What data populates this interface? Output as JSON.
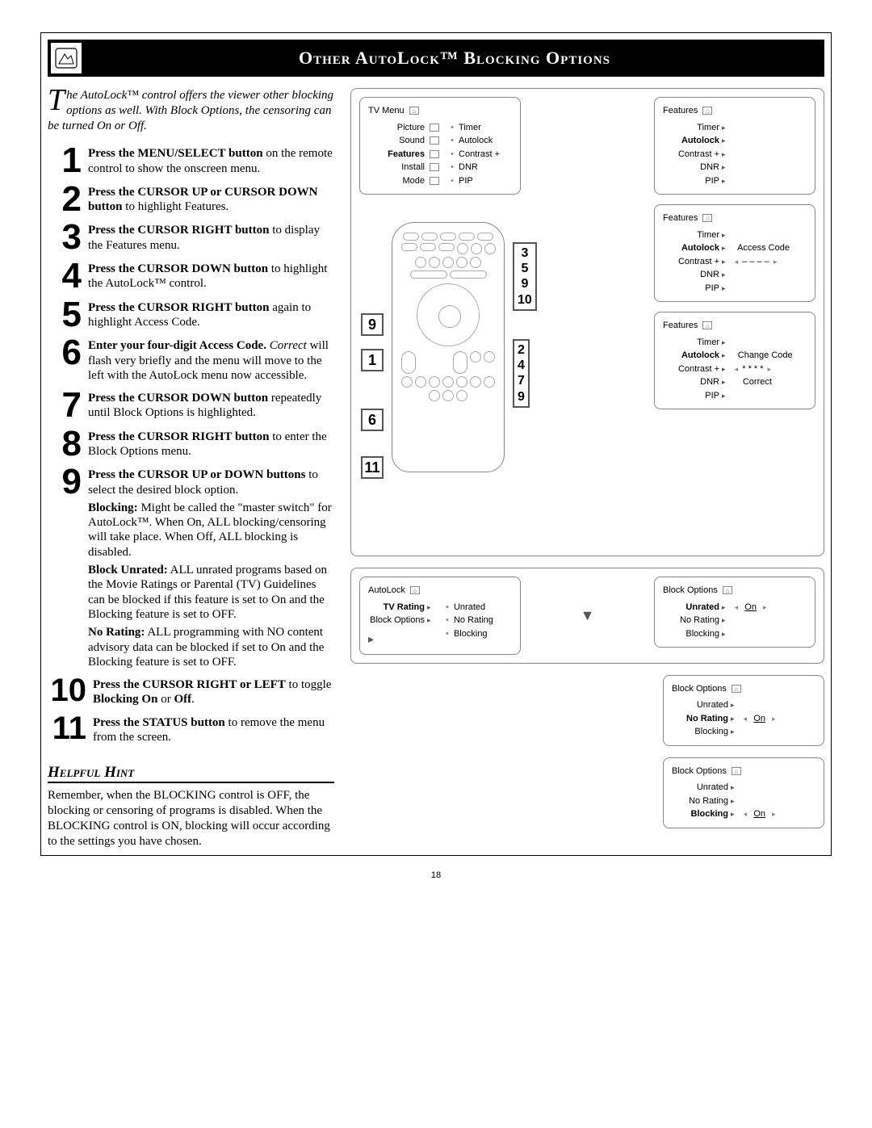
{
  "title": "Other AutoLock™ Blocking Options",
  "intro_drop": "T",
  "intro_rest": "he AutoLock™ control offers the viewer other blocking options as well. With Block Options, the censoring can be turned On or Off.",
  "steps": [
    {
      "n": "1",
      "body": "<b>Press the MENU/SELECT button</b> on the remote control to show the onscreen menu."
    },
    {
      "n": "2",
      "body": "<b>Press the CURSOR UP or CURSOR DOWN button</b> to highlight Features."
    },
    {
      "n": "3",
      "body": "<b>Press the CURSOR RIGHT button</b> to display the Features menu."
    },
    {
      "n": "4",
      "body": "<b>Press the CURSOR DOWN button</b> to highlight the AutoLock™ control."
    },
    {
      "n": "5",
      "body": "<b>Press the CURSOR RIGHT button</b> again to highlight Access Code."
    },
    {
      "n": "6",
      "body": "<b>Enter your four-digit Access Code.</b> <i>Correct</i> will flash very briefly and the menu will move to the left with the AutoLock menu now accessible."
    },
    {
      "n": "7",
      "body": "<b>Press the CURSOR DOWN button</b> repeatedly until Block Options is highlighted."
    },
    {
      "n": "8",
      "body": "<b>Press the CURSOR RIGHT button</b> to enter the Block Options menu."
    },
    {
      "n": "9",
      "body": "<b>Press the CURSOR UP or DOWN buttons</b> to select the desired block option.",
      "extra": [
        "<b>Blocking:</b> Might be called the \"master switch\" for AutoLock™. When On, ALL blocking/censoring will take place. When Off, ALL blocking is disabled.",
        "<b>Block Unrated:</b> ALL unrated programs based on the Movie Ratings or Parental (TV) Guidelines can be blocked if this feature is set to On and the Blocking feature is set to OFF.",
        "<b>No Rating:</b> ALL programming with NO content advisory data can be blocked if set to On and the Blocking feature is set to OFF."
      ]
    },
    {
      "n": "10",
      "body": "<b>Press the CURSOR RIGHT or LEFT</b> to toggle <b>Blocking On</b> or <b>Off</b>."
    },
    {
      "n": "11",
      "body": "<b>Press the STATUS button</b> to remove the menu from the screen."
    }
  ],
  "hint_title": "Helpful Hint",
  "hint_body": "Remember, when the BLOCKING control is OFF, the blocking or censoring of programs is disabled. When the BLOCKING control is ON, blocking will occur according to the settings you have chosen.",
  "page_number": "18",
  "tv_menu_title": "TV Menu",
  "tv_menu_left": [
    "Picture",
    "Sound",
    "Features",
    "Install",
    "Mode"
  ],
  "tv_menu_right": [
    "Timer",
    "Autolock",
    "Contrast +",
    "DNR",
    "PIP"
  ],
  "features_title": "Features",
  "features_items": [
    "Timer",
    "Autolock",
    "Contrast +",
    "DNR",
    "PIP"
  ],
  "access_code_right": "Access Code",
  "change_code_right": "Change Code",
  "correct": "Correct",
  "autolock_title": "AutoLock",
  "autolock_left": [
    "TV Rating",
    "Block Options"
  ],
  "autolock_right": [
    "Unrated",
    "No Rating",
    "Blocking"
  ],
  "blockopt_title": "Block Options",
  "blockopt_items": [
    "Unrated",
    "No Rating",
    "Blocking"
  ],
  "on_label": "On",
  "callouts_left": [
    "9",
    "1",
    "6",
    "11"
  ],
  "callouts_right_top": [
    "3",
    "5",
    "9",
    "10"
  ],
  "callouts_right_bottom": [
    "2",
    "4",
    "7",
    "9"
  ]
}
